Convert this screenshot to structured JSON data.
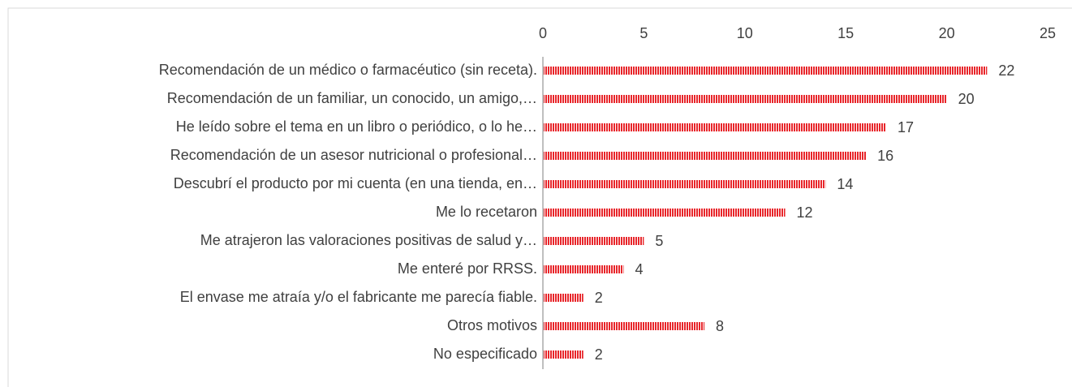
{
  "chart_data": {
    "type": "bar",
    "orientation": "horizontal",
    "categories": [
      "Recomendación de un médico o farmacéutico (sin receta).",
      "Recomendación de un familiar, un conocido, un amigo,…",
      "He leído sobre el tema en un libro o periódico, o lo he…",
      "Recomendación de un asesor nutricional o profesional…",
      "Descubrí el producto por mi cuenta (en una tienda, en…",
      "Me lo recetaron",
      "Me atrajeron las valoraciones positivas de salud y…",
      "Me enteré por RRSS.",
      "El envase me atraía y/o el fabricante me parecía fiable.",
      "Otros motivos",
      "No especificado"
    ],
    "values": [
      22,
      20,
      17,
      16,
      14,
      12,
      5,
      4,
      2,
      8,
      2
    ],
    "color": "#e8262b",
    "xlim": [
      0,
      25
    ],
    "xticks": [
      0,
      5,
      10,
      15,
      20,
      25
    ],
    "grid": false
  }
}
